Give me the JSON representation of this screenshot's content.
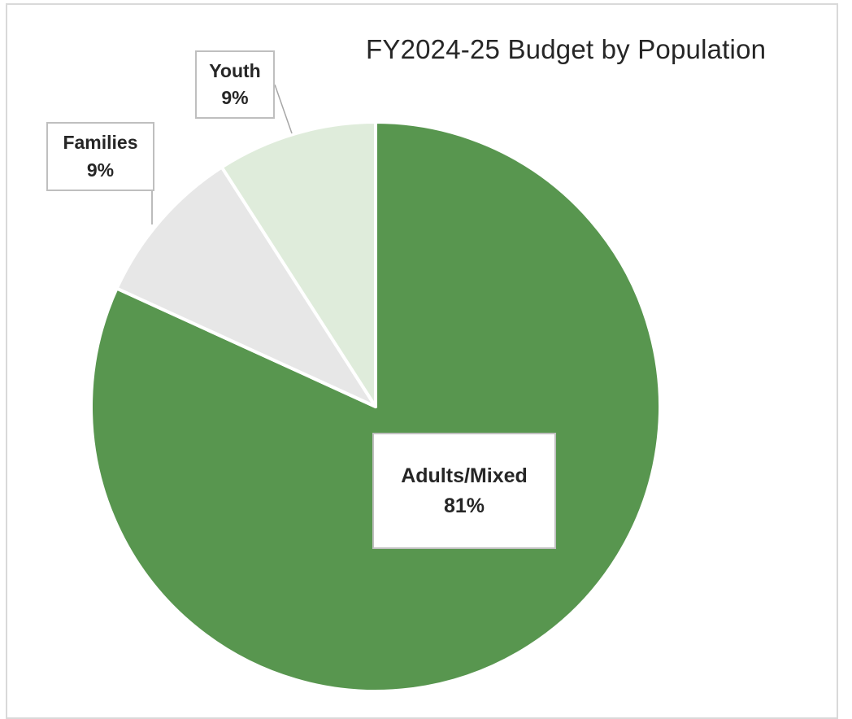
{
  "chart_data": {
    "type": "pie",
    "title": "FY2024-25 Budget by Population",
    "slices": [
      {
        "label": "Adults/Mixed",
        "value": 81,
        "value_label": "81%",
        "color": "#58964f"
      },
      {
        "label": "Families",
        "value": 9,
        "value_label": "9%",
        "color": "#e7e7e7"
      },
      {
        "label": "Youth",
        "value": 9,
        "value_label": "9%",
        "color": "#dfecdb"
      }
    ],
    "start_angle": "12 o'clock",
    "direction": "clockwise",
    "legend": "none",
    "data_labels": "boxed with leader lines"
  }
}
